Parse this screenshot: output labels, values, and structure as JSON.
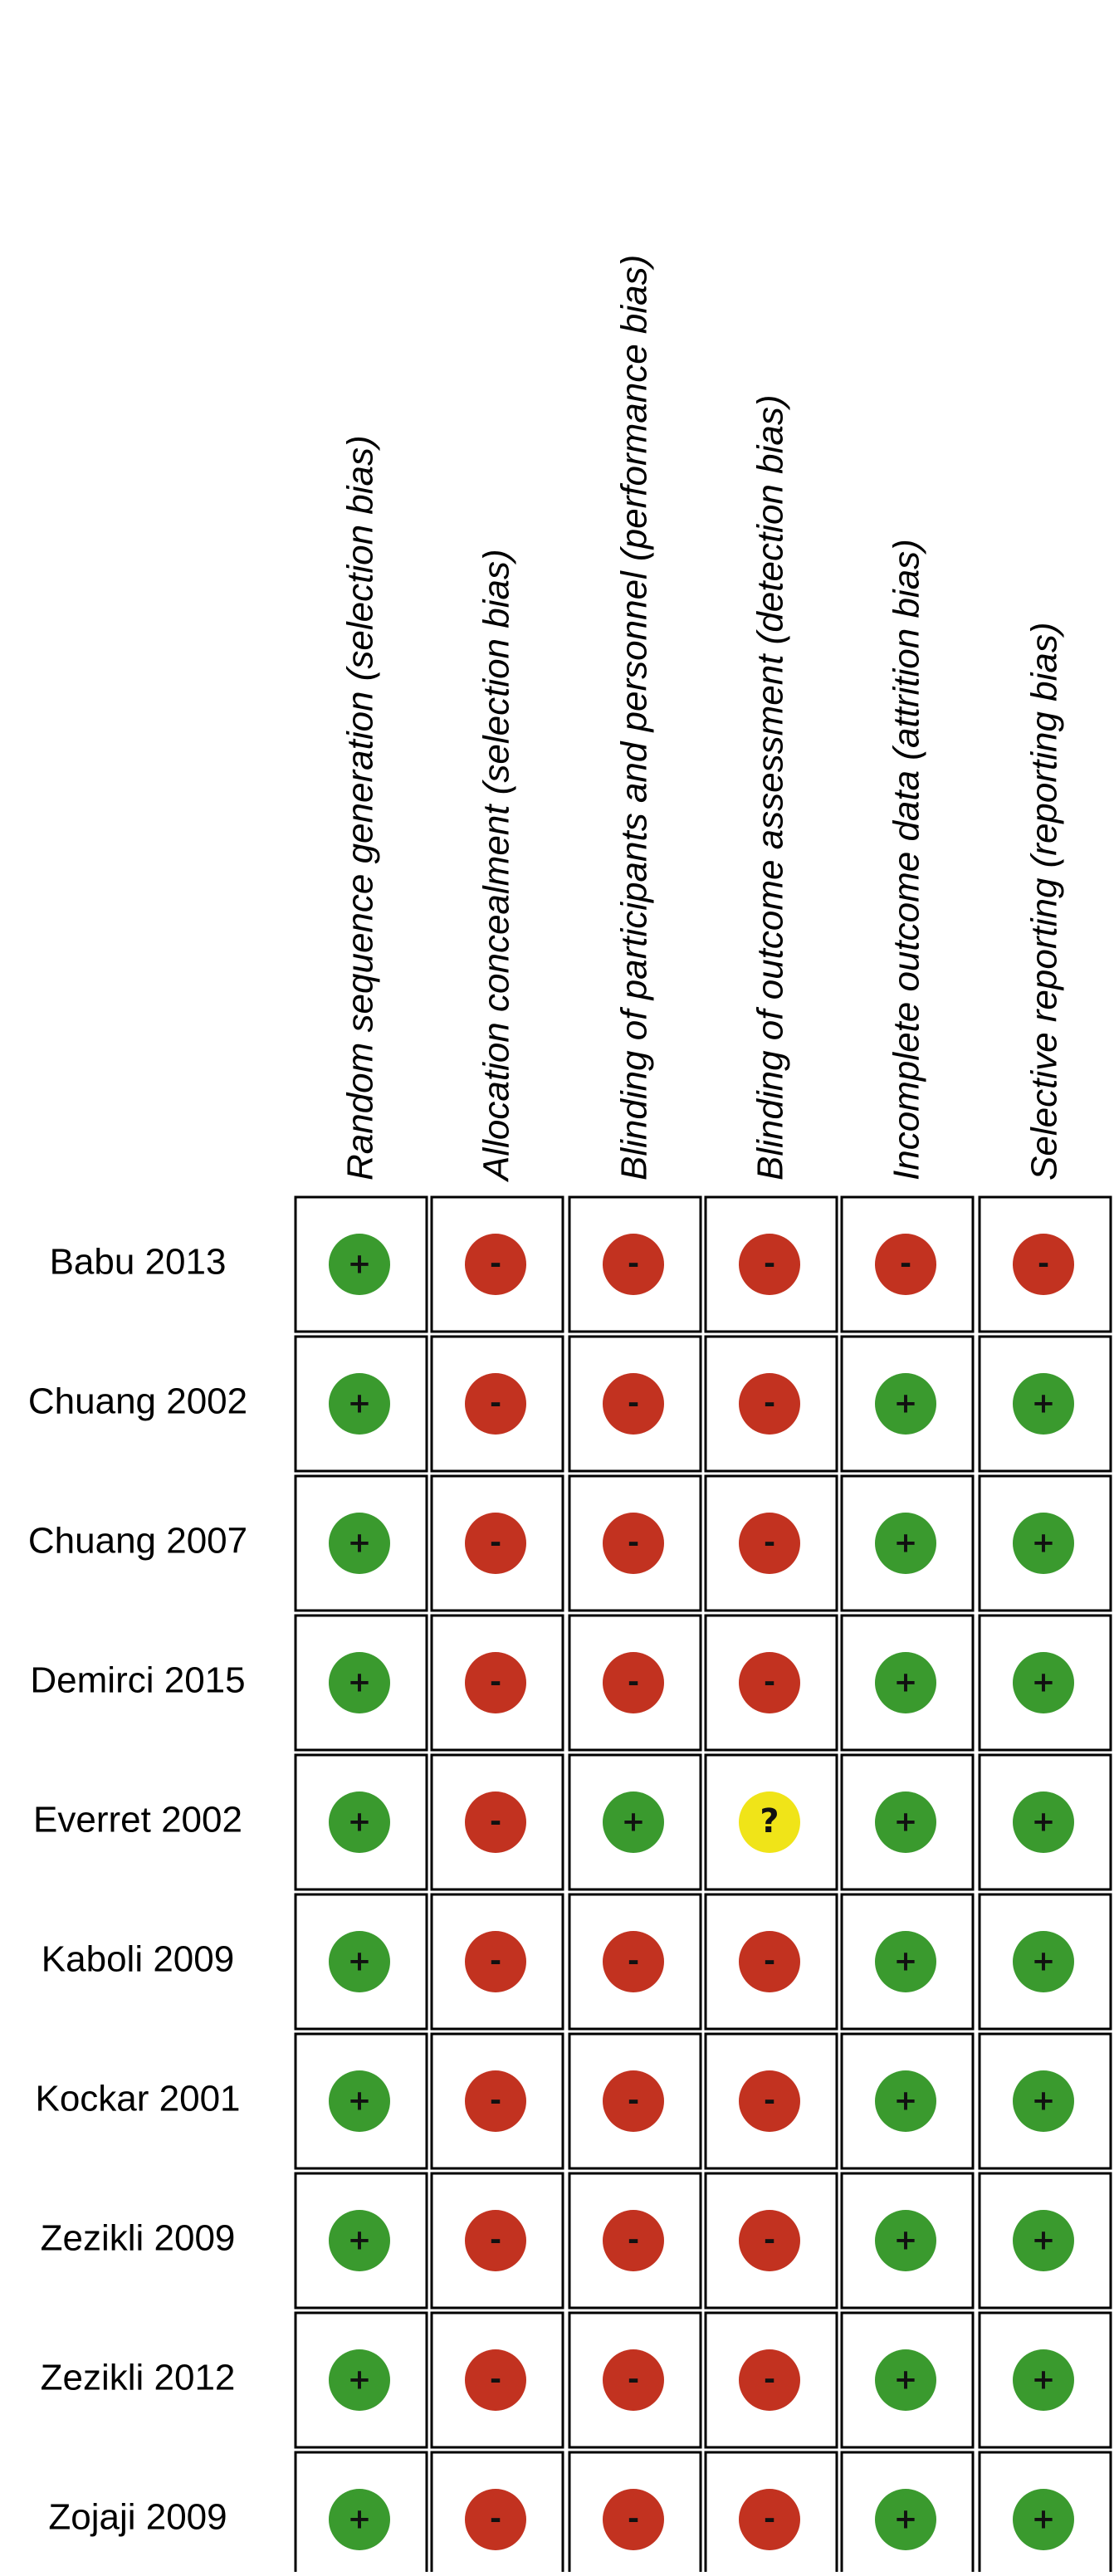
{
  "chart_data": {
    "type": "table",
    "columns": [
      "Random sequence generation (selection bias)",
      "Allocation concealment (selection bias)",
      "Blinding of participants and personnel (performance bias)",
      "Blinding of  outcome assessment (detection bias)",
      "Incomplete outcome data (attrition bias)",
      "Selective reporting (reporting bias)"
    ],
    "rows": [
      "Babu 2013",
      "Chuang 2002",
      "Chuang 2007",
      "Demirci 2015",
      "Everret 2002",
      "Kaboli 2009",
      "Kockar 2001",
      "Zezikli 2009",
      "Zezikli 2012",
      "Zojaji 2009"
    ],
    "values": [
      [
        "+",
        "-",
        "-",
        "-",
        "-",
        "-"
      ],
      [
        "+",
        "-",
        "-",
        "-",
        "+",
        "+"
      ],
      [
        "+",
        "-",
        "-",
        "-",
        "+",
        "+"
      ],
      [
        "+",
        "-",
        "-",
        "-",
        "+",
        "+"
      ],
      [
        "+",
        "-",
        "+",
        "?",
        "+",
        "+"
      ],
      [
        "+",
        "-",
        "-",
        "-",
        "+",
        "+"
      ],
      [
        "+",
        "-",
        "-",
        "-",
        "+",
        "+"
      ],
      [
        "+",
        "-",
        "-",
        "-",
        "+",
        "+"
      ],
      [
        "+",
        "-",
        "-",
        "-",
        "+",
        "+"
      ],
      [
        "+",
        "-",
        "-",
        "-",
        "+",
        "+"
      ]
    ],
    "judgement_colors": {
      "+": "#3a9a2e",
      "-": "#c23220",
      "?": "#f0e418"
    }
  }
}
